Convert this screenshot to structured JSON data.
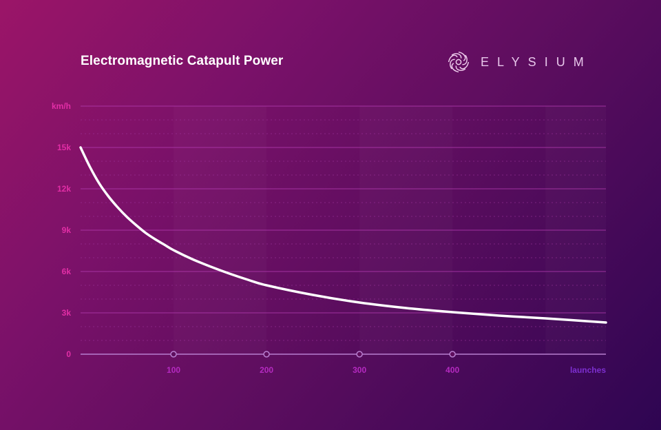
{
  "header": {
    "title": "Electromagnetic Catapult Power"
  },
  "brand": {
    "wordmark": "ELYSIUM",
    "logo_icon": "swirl-logo-icon"
  },
  "colors": {
    "line": "#ffffff",
    "grid_major": "#b23bb0",
    "grid_minor": "#a0379f",
    "y_text": "#e22ea6",
    "x_text": "#b52ac1",
    "x_axis": "#b87fd0"
  },
  "chart_data": {
    "type": "line",
    "title": "Electromagnetic Catapult Power",
    "xlabel": "launches",
    "ylabel": "km/h",
    "xlim": [
      0,
      565
    ],
    "ylim": [
      0,
      18000
    ],
    "x_ticks": [
      100,
      200,
      300,
      400
    ],
    "x_tick_labels": [
      "100",
      "200",
      "300",
      "400"
    ],
    "y_ticks": [
      0,
      3000,
      6000,
      9000,
      12000,
      15000
    ],
    "y_tick_labels": [
      "0",
      "3k",
      "6k",
      "9k",
      "12k",
      "15k"
    ],
    "grid": true,
    "series": [
      {
        "x": [
          0,
          10,
          20,
          30,
          40,
          50,
          60,
          70,
          80,
          90,
          100,
          120,
          140,
          160,
          180,
          200,
          250,
          300,
          350,
          400,
          450,
          500,
          565
        ],
        "y": [
          15000,
          13600,
          12400,
          11450,
          10650,
          9950,
          9350,
          8800,
          8350,
          7950,
          7550,
          6900,
          6350,
          5850,
          5400,
          5000,
          4300,
          3750,
          3350,
          3050,
          2800,
          2600,
          2300
        ]
      }
    ]
  }
}
